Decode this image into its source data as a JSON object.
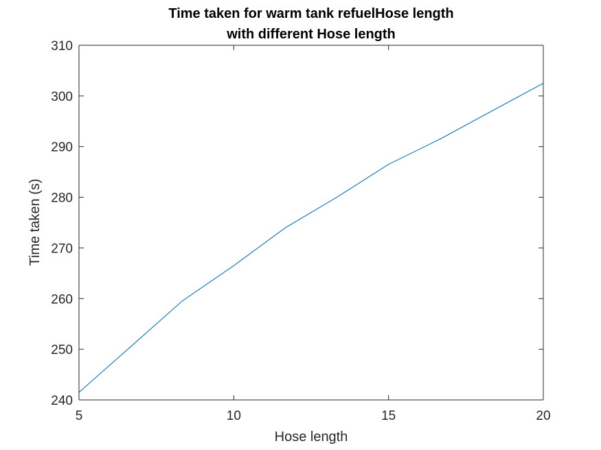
{
  "chart_data": {
    "type": "line",
    "title": [
      "Time taken for warm tank refuelHose length",
      "with different Hose length"
    ],
    "xlabel": "Hose length",
    "ylabel": "Time taken (s)",
    "xlim": [
      5,
      20
    ],
    "ylim": [
      240,
      310
    ],
    "xticks": [
      "5",
      "10",
      "15",
      "20"
    ],
    "yticks": [
      "240",
      "250",
      "260",
      "270",
      "280",
      "290",
      "300",
      "310"
    ],
    "grid": false,
    "legend": "none",
    "series": [
      {
        "color": "#0072BD",
        "x": [
          5,
          6.67,
          8.33,
          10,
          11.67,
          13.33,
          15,
          16.67,
          18.33,
          20
        ],
        "y": [
          241.5,
          250.5,
          259.5,
          266.5,
          274.0,
          280.0,
          286.5,
          291.5,
          297.0,
          302.5
        ]
      }
    ]
  }
}
